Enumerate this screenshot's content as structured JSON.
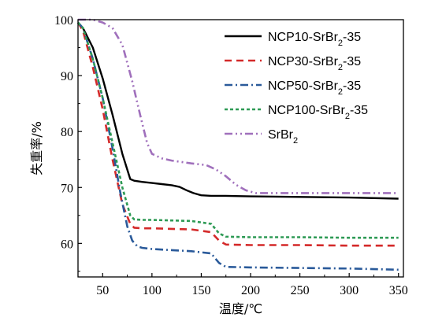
{
  "chart_data": {
    "type": "line",
    "xlabel": "温度/℃",
    "ylabel": "失重率/%",
    "xlim": [
      25,
      355
    ],
    "ylim": [
      54,
      100
    ],
    "xticks": [
      50,
      100,
      150,
      200,
      250,
      300,
      350
    ],
    "yticks": [
      60,
      70,
      80,
      90,
      100
    ],
    "legend_position": "top-right",
    "series": [
      {
        "name": "NCP10-SrBr2-35",
        "label_base": "NCP10-SrBr",
        "label_sub": "2",
        "label_tail": "-35",
        "color": "#000000",
        "dash": "",
        "x": [
          25,
          30,
          40,
          50,
          60,
          70,
          78,
          82,
          90,
          100,
          110,
          120,
          128,
          135,
          142,
          150,
          160,
          175,
          200,
          250,
          300,
          350
        ],
        "y": [
          99.5,
          98.5,
          95,
          89.5,
          83,
          76,
          71.5,
          71.2,
          71.0,
          70.8,
          70.6,
          70.4,
          70.1,
          69.5,
          69.0,
          68.6,
          68.5,
          68.5,
          68.4,
          68.3,
          68.2,
          68.0
        ]
      },
      {
        "name": "NCP30-SrBr2-35",
        "label_base": "NCP30-SrBr",
        "label_sub": "2",
        "label_tail": "-35",
        "color": "#d42a2a",
        "dash": "9,6",
        "x": [
          25,
          30,
          40,
          50,
          60,
          70,
          78,
          82,
          90,
          100,
          120,
          140,
          160,
          168,
          175,
          200,
          250,
          300,
          350
        ],
        "y": [
          99.5,
          98,
          91.5,
          84,
          75,
          67,
          63.5,
          62.8,
          62.7,
          62.7,
          62.6,
          62.5,
          62.0,
          60.5,
          59.8,
          59.7,
          59.7,
          59.6,
          59.6
        ]
      },
      {
        "name": "NCP50-SrBr2-35",
        "label_base": "NCP50-SrBr",
        "label_sub": "2",
        "label_tail": "-35",
        "color": "#2a5a9a",
        "dash": "10,4,2,4",
        "x": [
          25,
          30,
          40,
          50,
          60,
          68,
          75,
          80,
          85,
          90,
          100,
          120,
          140,
          160,
          168,
          175,
          200,
          250,
          300,
          350
        ],
        "y": [
          99.5,
          98.5,
          93,
          86,
          77,
          69,
          63,
          60.5,
          59.5,
          59.2,
          59.0,
          58.8,
          58.6,
          58.2,
          56.5,
          55.8,
          55.7,
          55.6,
          55.5,
          55.3
        ]
      },
      {
        "name": "NCP100-SrBr2-35",
        "label_base": "NCP100-SrBr",
        "label_sub": "2",
        "label_tail": "-35",
        "color": "#2e9a55",
        "dash": "4,3",
        "x": [
          25,
          30,
          40,
          50,
          60,
          70,
          78,
          82,
          90,
          100,
          120,
          140,
          160,
          168,
          175,
          200,
          250,
          300,
          350
        ],
        "y": [
          99.5,
          98.5,
          93,
          86,
          78,
          70,
          65,
          64.3,
          64.2,
          64.2,
          64.1,
          64.0,
          63.5,
          61.8,
          61.2,
          61.1,
          61.1,
          61.0,
          61.0
        ]
      },
      {
        "name": "SrBr2",
        "label_base": "SrBr",
        "label_sub": "2",
        "label_tail": "",
        "color": "#a070bc",
        "dash": "10,4,2,4,2,4",
        "x": [
          25,
          40,
          50,
          60,
          70,
          80,
          88,
          95,
          100,
          110,
          120,
          140,
          155,
          165,
          175,
          185,
          195,
          205,
          220,
          250,
          300,
          350
        ],
        "y": [
          100,
          100,
          99.5,
          98.5,
          95.5,
          89,
          83,
          78,
          76,
          75.2,
          74.8,
          74.3,
          74.0,
          73.2,
          72.0,
          70.5,
          69.5,
          69.0,
          69.0,
          69.0,
          69.0,
          69.0
        ]
      }
    ]
  }
}
